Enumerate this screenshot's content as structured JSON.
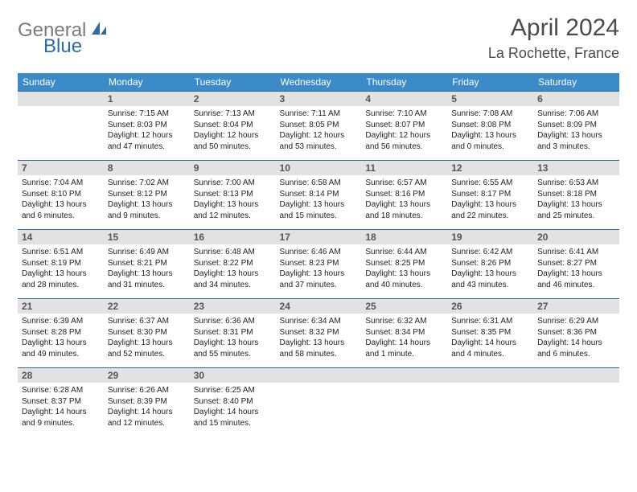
{
  "logo": {
    "part1": "General",
    "part2": "Blue"
  },
  "title": "April 2024",
  "location": "La Rochette, France",
  "weekday_labels": [
    "Sunday",
    "Monday",
    "Tuesday",
    "Wednesday",
    "Thursday",
    "Friday",
    "Saturday"
  ],
  "colors": {
    "header_bg": "#3b8bc9",
    "accent": "#2d6ba8",
    "daynum_bg": "#e2e2e2",
    "logo_gray": "#7a7a7a"
  },
  "weeks": [
    [
      {
        "n": "",
        "sunrise": "",
        "sunset": "",
        "daylight": ""
      },
      {
        "n": "1",
        "sunrise": "Sunrise: 7:15 AM",
        "sunset": "Sunset: 8:03 PM",
        "daylight": "Daylight: 12 hours and 47 minutes."
      },
      {
        "n": "2",
        "sunrise": "Sunrise: 7:13 AM",
        "sunset": "Sunset: 8:04 PM",
        "daylight": "Daylight: 12 hours and 50 minutes."
      },
      {
        "n": "3",
        "sunrise": "Sunrise: 7:11 AM",
        "sunset": "Sunset: 8:05 PM",
        "daylight": "Daylight: 12 hours and 53 minutes."
      },
      {
        "n": "4",
        "sunrise": "Sunrise: 7:10 AM",
        "sunset": "Sunset: 8:07 PM",
        "daylight": "Daylight: 12 hours and 56 minutes."
      },
      {
        "n": "5",
        "sunrise": "Sunrise: 7:08 AM",
        "sunset": "Sunset: 8:08 PM",
        "daylight": "Daylight: 13 hours and 0 minutes."
      },
      {
        "n": "6",
        "sunrise": "Sunrise: 7:06 AM",
        "sunset": "Sunset: 8:09 PM",
        "daylight": "Daylight: 13 hours and 3 minutes."
      }
    ],
    [
      {
        "n": "7",
        "sunrise": "Sunrise: 7:04 AM",
        "sunset": "Sunset: 8:10 PM",
        "daylight": "Daylight: 13 hours and 6 minutes."
      },
      {
        "n": "8",
        "sunrise": "Sunrise: 7:02 AM",
        "sunset": "Sunset: 8:12 PM",
        "daylight": "Daylight: 13 hours and 9 minutes."
      },
      {
        "n": "9",
        "sunrise": "Sunrise: 7:00 AM",
        "sunset": "Sunset: 8:13 PM",
        "daylight": "Daylight: 13 hours and 12 minutes."
      },
      {
        "n": "10",
        "sunrise": "Sunrise: 6:58 AM",
        "sunset": "Sunset: 8:14 PM",
        "daylight": "Daylight: 13 hours and 15 minutes."
      },
      {
        "n": "11",
        "sunrise": "Sunrise: 6:57 AM",
        "sunset": "Sunset: 8:16 PM",
        "daylight": "Daylight: 13 hours and 18 minutes."
      },
      {
        "n": "12",
        "sunrise": "Sunrise: 6:55 AM",
        "sunset": "Sunset: 8:17 PM",
        "daylight": "Daylight: 13 hours and 22 minutes."
      },
      {
        "n": "13",
        "sunrise": "Sunrise: 6:53 AM",
        "sunset": "Sunset: 8:18 PM",
        "daylight": "Daylight: 13 hours and 25 minutes."
      }
    ],
    [
      {
        "n": "14",
        "sunrise": "Sunrise: 6:51 AM",
        "sunset": "Sunset: 8:19 PM",
        "daylight": "Daylight: 13 hours and 28 minutes."
      },
      {
        "n": "15",
        "sunrise": "Sunrise: 6:49 AM",
        "sunset": "Sunset: 8:21 PM",
        "daylight": "Daylight: 13 hours and 31 minutes."
      },
      {
        "n": "16",
        "sunrise": "Sunrise: 6:48 AM",
        "sunset": "Sunset: 8:22 PM",
        "daylight": "Daylight: 13 hours and 34 minutes."
      },
      {
        "n": "17",
        "sunrise": "Sunrise: 6:46 AM",
        "sunset": "Sunset: 8:23 PM",
        "daylight": "Daylight: 13 hours and 37 minutes."
      },
      {
        "n": "18",
        "sunrise": "Sunrise: 6:44 AM",
        "sunset": "Sunset: 8:25 PM",
        "daylight": "Daylight: 13 hours and 40 minutes."
      },
      {
        "n": "19",
        "sunrise": "Sunrise: 6:42 AM",
        "sunset": "Sunset: 8:26 PM",
        "daylight": "Daylight: 13 hours and 43 minutes."
      },
      {
        "n": "20",
        "sunrise": "Sunrise: 6:41 AM",
        "sunset": "Sunset: 8:27 PM",
        "daylight": "Daylight: 13 hours and 46 minutes."
      }
    ],
    [
      {
        "n": "21",
        "sunrise": "Sunrise: 6:39 AM",
        "sunset": "Sunset: 8:28 PM",
        "daylight": "Daylight: 13 hours and 49 minutes."
      },
      {
        "n": "22",
        "sunrise": "Sunrise: 6:37 AM",
        "sunset": "Sunset: 8:30 PM",
        "daylight": "Daylight: 13 hours and 52 minutes."
      },
      {
        "n": "23",
        "sunrise": "Sunrise: 6:36 AM",
        "sunset": "Sunset: 8:31 PM",
        "daylight": "Daylight: 13 hours and 55 minutes."
      },
      {
        "n": "24",
        "sunrise": "Sunrise: 6:34 AM",
        "sunset": "Sunset: 8:32 PM",
        "daylight": "Daylight: 13 hours and 58 minutes."
      },
      {
        "n": "25",
        "sunrise": "Sunrise: 6:32 AM",
        "sunset": "Sunset: 8:34 PM",
        "daylight": "Daylight: 14 hours and 1 minute."
      },
      {
        "n": "26",
        "sunrise": "Sunrise: 6:31 AM",
        "sunset": "Sunset: 8:35 PM",
        "daylight": "Daylight: 14 hours and 4 minutes."
      },
      {
        "n": "27",
        "sunrise": "Sunrise: 6:29 AM",
        "sunset": "Sunset: 8:36 PM",
        "daylight": "Daylight: 14 hours and 6 minutes."
      }
    ],
    [
      {
        "n": "28",
        "sunrise": "Sunrise: 6:28 AM",
        "sunset": "Sunset: 8:37 PM",
        "daylight": "Daylight: 14 hours and 9 minutes."
      },
      {
        "n": "29",
        "sunrise": "Sunrise: 6:26 AM",
        "sunset": "Sunset: 8:39 PM",
        "daylight": "Daylight: 14 hours and 12 minutes."
      },
      {
        "n": "30",
        "sunrise": "Sunrise: 6:25 AM",
        "sunset": "Sunset: 8:40 PM",
        "daylight": "Daylight: 14 hours and 15 minutes."
      },
      {
        "n": "",
        "sunrise": "",
        "sunset": "",
        "daylight": ""
      },
      {
        "n": "",
        "sunrise": "",
        "sunset": "",
        "daylight": ""
      },
      {
        "n": "",
        "sunrise": "",
        "sunset": "",
        "daylight": ""
      },
      {
        "n": "",
        "sunrise": "",
        "sunset": "",
        "daylight": ""
      }
    ]
  ]
}
